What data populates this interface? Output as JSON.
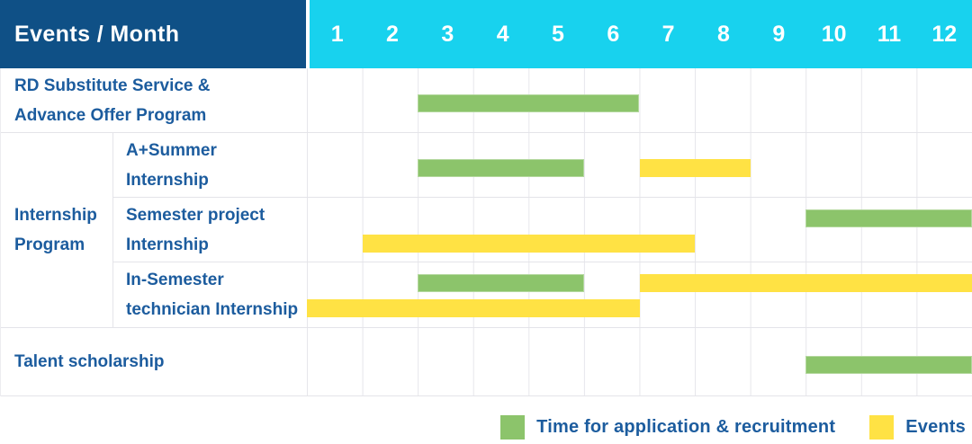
{
  "colors": {
    "header_bg": "#0F5086",
    "months_bg": "#18D2EE",
    "label_text": "#1C5C9E",
    "bar_green": "#8CC46B",
    "bar_yellow": "#FFE244",
    "grid_line": "#E6E6EB"
  },
  "table": {
    "corner_label": "Events / Month",
    "months": [
      "1",
      "2",
      "3",
      "4",
      "5",
      "6",
      "7",
      "8",
      "9",
      "10",
      "11",
      "12"
    ],
    "labels": {
      "rd": {
        "line1": "RD Substitute Service &",
        "line2": "Advance Offer Program"
      },
      "group": {
        "line1": "Internship",
        "line2": "Program"
      },
      "summer": {
        "line1": "A+Summer",
        "line2": "Internship"
      },
      "semester": {
        "line1": "Semester project",
        "line2": "Internship"
      },
      "technician": {
        "line1": "In-Semester",
        "line2": "technician Internship"
      },
      "talent": {
        "line1": "Talent scholarship"
      }
    }
  },
  "bars": {
    "rd": [
      {
        "color": "green",
        "start": 3,
        "end": 6,
        "lane": "center"
      }
    ],
    "summer": [
      {
        "color": "green",
        "start": 3,
        "end": 5,
        "lane": "center"
      },
      {
        "color": "yellow",
        "start": 7,
        "end": 8,
        "lane": "center"
      }
    ],
    "semester": [
      {
        "color": "green",
        "start": 10,
        "end": 12,
        "lane": "top"
      },
      {
        "color": "yellow",
        "start": 2,
        "end": 7,
        "lane": "bottom"
      }
    ],
    "technician": [
      {
        "color": "green",
        "start": 3,
        "end": 5,
        "lane": "top"
      },
      {
        "color": "yellow",
        "start": 7,
        "end": 12,
        "lane": "top"
      },
      {
        "color": "yellow",
        "start": 1,
        "end": 6,
        "lane": "bottom"
      }
    ],
    "talent": [
      {
        "color": "green",
        "start": 10,
        "end": 12,
        "lane": "center"
      }
    ]
  },
  "legend": [
    {
      "label": "Time for application & recruitment",
      "color": "#8CC46B",
      "swatch": "green"
    },
    {
      "label": "Events",
      "color": "#FFE244",
      "swatch": "yellow"
    }
  ],
  "chart_data": {
    "type": "bar",
    "subtype": "gantt-timeline",
    "title": "Events / Month",
    "xlabel": "Month",
    "x_ticks": [
      1,
      2,
      3,
      4,
      5,
      6,
      7,
      8,
      9,
      10,
      11,
      12
    ],
    "xlim": [
      1,
      12
    ],
    "grid": true,
    "legend_position": "bottom-right",
    "legend_entries": [
      "Time for application & recruitment",
      "Events"
    ],
    "rows": [
      {
        "event": "RD Substitute Service & Advance Offer Program",
        "group": null,
        "spans": [
          {
            "type": "Time for application & recruitment",
            "start_month": 3,
            "end_month": 6
          }
        ]
      },
      {
        "event": "A+Summer Internship",
        "group": "Internship Program",
        "spans": [
          {
            "type": "Time for application & recruitment",
            "start_month": 3,
            "end_month": 5
          },
          {
            "type": "Events",
            "start_month": 7,
            "end_month": 8
          }
        ]
      },
      {
        "event": "Semester project Internship",
        "group": "Internship Program",
        "spans": [
          {
            "type": "Time for application & recruitment",
            "start_month": 10,
            "end_month": 12
          },
          {
            "type": "Events",
            "start_month": 2,
            "end_month": 7
          }
        ]
      },
      {
        "event": "In-Semester technician Internship",
        "group": "Internship Program",
        "spans": [
          {
            "type": "Time for application & recruitment",
            "start_month": 3,
            "end_month": 5
          },
          {
            "type": "Events",
            "start_month": 7,
            "end_month": 12
          },
          {
            "type": "Events",
            "start_month": 1,
            "end_month": 6
          }
        ]
      },
      {
        "event": "Talent scholarship",
        "group": null,
        "spans": [
          {
            "type": "Time for application & recruitment",
            "start_month": 10,
            "end_month": 12
          }
        ]
      }
    ]
  }
}
